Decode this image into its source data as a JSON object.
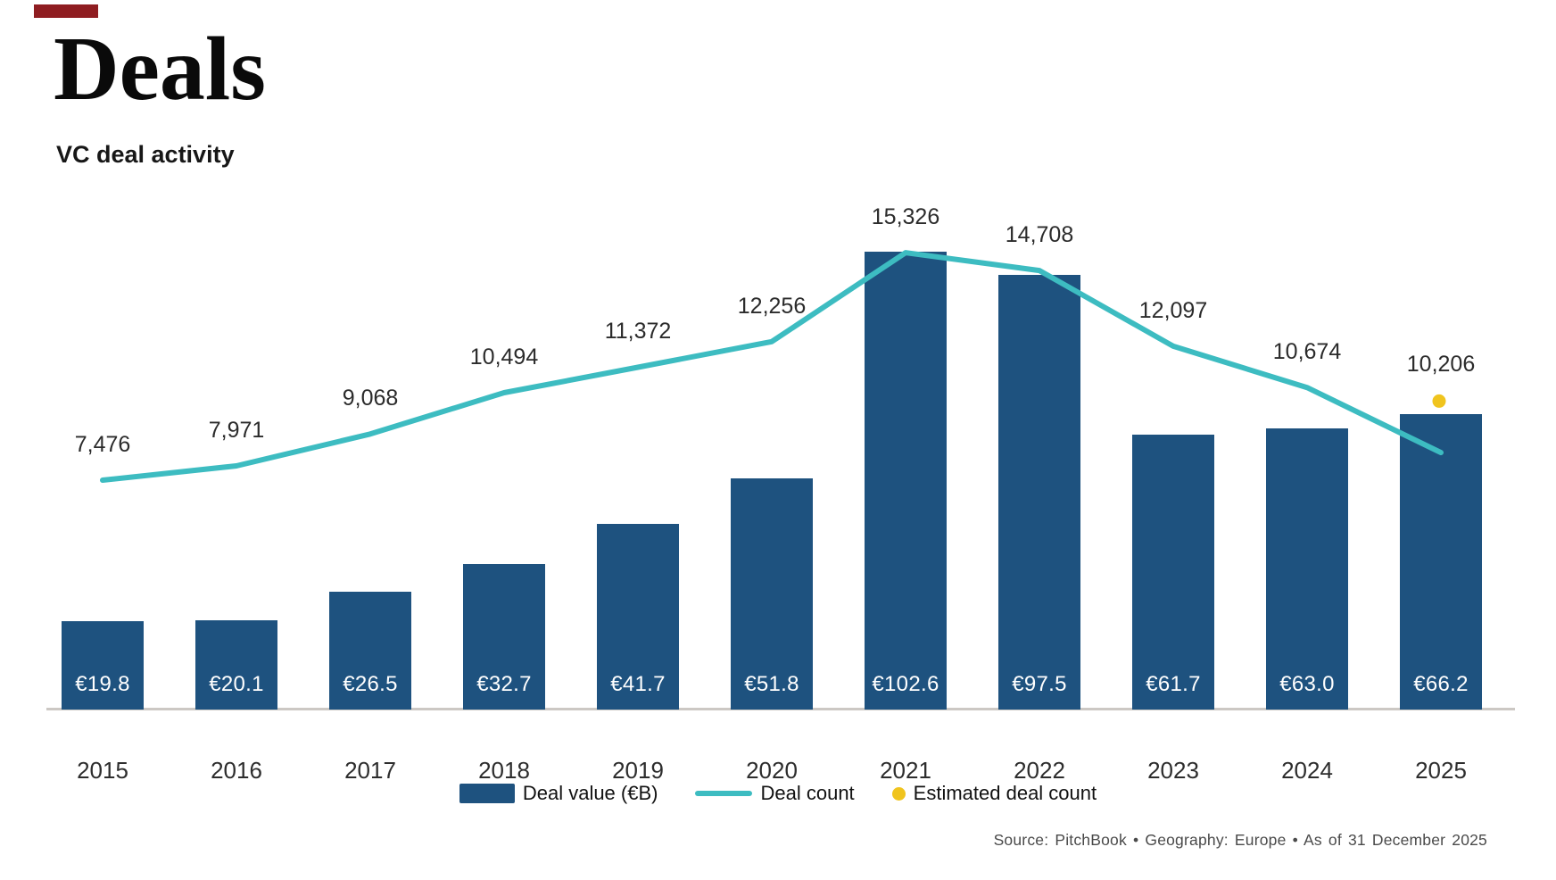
{
  "page": {
    "title": "Deals",
    "subtitle": "VC deal activity",
    "source_line": "Source: PitchBook  •  Geography: Europe  •  As of 31 December 2025"
  },
  "colors": {
    "accent": "#8f1d21",
    "bar": "#1e527f",
    "line": "#3dbcc1",
    "estimated_dot": "#f0c41e",
    "axis": "#ccc8c4",
    "count_label_text": "#2b2b2b",
    "year_label_text": "#2d2d2d",
    "bar_label_text": "#ffffff"
  },
  "legend": {
    "items": [
      {
        "label": "Deal value (€B)",
        "swatch": "bar"
      },
      {
        "label": "Deal count",
        "swatch": "line"
      },
      {
        "label": "Estimated deal count",
        "swatch": "dot"
      }
    ]
  },
  "chart_data": {
    "type": "bar",
    "title": "VC deal activity",
    "categories": [
      "2015",
      "2016",
      "2017",
      "2018",
      "2019",
      "2020",
      "2021",
      "2022",
      "2023",
      "2024",
      "2025"
    ],
    "series": [
      {
        "name": "Deal value (€B)",
        "type": "bar",
        "unit": "EUR billions",
        "values": [
          19.8,
          20.1,
          26.5,
          32.7,
          41.7,
          51.8,
          102.6,
          97.5,
          61.7,
          63.0,
          66.2
        ],
        "labels": [
          "€19.8",
          "€20.1",
          "€26.5",
          "€32.7",
          "€41.7",
          "€51.8",
          "€102.6",
          "€97.5",
          "€61.7",
          "€63.0",
          "€66.2"
        ]
      },
      {
        "name": "Deal count",
        "type": "line",
        "values": [
          7476,
          7971,
          9068,
          10494,
          11372,
          12256,
          15326,
          14708,
          12097,
          10674
        ],
        "labels": [
          "7,476",
          "7,971",
          "9,068",
          "10,494",
          "11,372",
          "12,256",
          "15,326",
          "14,708",
          "12,097",
          "10,674"
        ],
        "line_end_2025_unlabeled_approx": 8430
      },
      {
        "name": "Estimated deal count",
        "type": "point",
        "category": "2025",
        "value": 10206,
        "label": "10,206"
      }
    ],
    "value_axis_visible": false,
    "grid": false,
    "legend_position": "bottom"
  }
}
